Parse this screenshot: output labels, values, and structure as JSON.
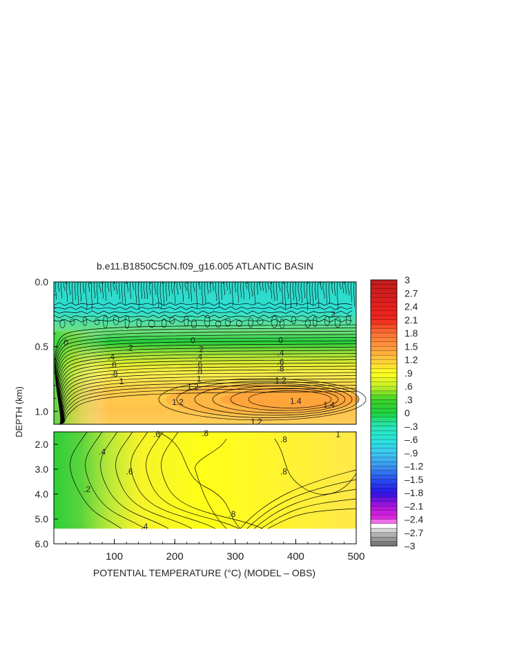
{
  "chart_data": {
    "type": "heatmap",
    "title": "b.e11.B1850C5CN.f09_g16.005 ATLANTIC BASIN",
    "xlabel": "POTENTIAL TEMPERATURE (°C) (MODEL – OBS)",
    "ylabel": "DEPTH (km)",
    "xlim": [
      0,
      500
    ],
    "x_ticks": [
      "100",
      "200",
      "300",
      "400",
      "500"
    ],
    "y_ticks_upper": [
      "0.0",
      "0.5",
      "1.0"
    ],
    "y_ticks_lower": [
      "2.0",
      "3.0",
      "4.0",
      "5.0",
      "6.0"
    ],
    "ylim_upper": [
      0,
      1.1
    ],
    "ylim_lower": [
      1.5,
      6.0
    ],
    "colorbar": {
      "labels": [
        "3",
        "2.7",
        "2.4",
        "2.1",
        "1.8",
        "1.5",
        "1.2",
        ".9",
        ".6",
        ".3",
        "0",
        "–.3",
        "–.6",
        "–.9",
        "–1.2",
        "–1.5",
        "–1.8",
        "–2.1",
        "–2.4",
        "–2.7",
        "–3"
      ],
      "max": 3,
      "min": -3
    },
    "contour_labels": [
      {
        "text": "0",
        "x": 20,
        "y": 0.47,
        "panel": "upper"
      },
      {
        "text": ".2",
        "x": 125,
        "y": 0.51,
        "panel": "upper"
      },
      {
        "text": ".4",
        "x": 95,
        "y": 0.58,
        "panel": "upper"
      },
      {
        "text": ".6",
        "x": 98,
        "y": 0.64,
        "panel": "upper"
      },
      {
        "text": ".8",
        "x": 100,
        "y": 0.71,
        "panel": "upper"
      },
      {
        "text": "1",
        "x": 112,
        "y": 0.77,
        "panel": "upper"
      },
      {
        "text": "1.2",
        "x": 230,
        "y": 0.81,
        "panel": "upper"
      },
      {
        "text": "1.2",
        "x": 205,
        "y": 0.93,
        "panel": "upper"
      },
      {
        "text": "1.2",
        "x": 375,
        "y": 0.76,
        "panel": "upper"
      },
      {
        "text": "1.2",
        "x": 335,
        "y": 1.08,
        "panel": "upper"
      },
      {
        "text": "1.4",
        "x": 400,
        "y": 0.92,
        "panel": "upper"
      },
      {
        "text": "1.4",
        "x": 455,
        "y": 0.95,
        "panel": "upper"
      },
      {
        "text": "0",
        "x": 230,
        "y": 0.45,
        "panel": "upper"
      },
      {
        "text": ".2",
        "x": 242,
        "y": 0.52,
        "panel": "upper"
      },
      {
        "text": ".4",
        "x": 240,
        "y": 0.58,
        "panel": "upper"
      },
      {
        "text": ".6",
        "x": 240,
        "y": 0.64,
        "panel": "upper"
      },
      {
        "text": ".8",
        "x": 240,
        "y": 0.69,
        "panel": "upper"
      },
      {
        "text": "1",
        "x": 240,
        "y": 0.75,
        "panel": "upper"
      },
      {
        "text": "0",
        "x": 375,
        "y": 0.45,
        "panel": "upper"
      },
      {
        "text": ".4",
        "x": 375,
        "y": 0.55,
        "panel": "upper"
      },
      {
        "text": ".6",
        "x": 375,
        "y": 0.62,
        "panel": "upper"
      },
      {
        "text": ".8",
        "x": 375,
        "y": 0.67,
        "panel": "upper"
      },
      {
        "text": ".2",
        "x": 460,
        "y": 0.25,
        "panel": "upper"
      },
      {
        "text": ".6",
        "x": 170,
        "y": 1.6,
        "panel": "lower"
      },
      {
        "text": ".8",
        "x": 250,
        "y": 1.55,
        "panel": "lower"
      },
      {
        "text": ".8",
        "x": 380,
        "y": 1.8,
        "panel": "lower"
      },
      {
        "text": ".8",
        "x": 380,
        "y": 3.1,
        "panel": "lower"
      },
      {
        "text": ".8",
        "x": 295,
        "y": 4.8,
        "panel": "lower"
      },
      {
        "text": ".4",
        "x": 80,
        "y": 2.3,
        "panel": "lower"
      },
      {
        "text": ".2",
        "x": 55,
        "y": 3.8,
        "panel": "lower"
      },
      {
        "text": ".6",
        "x": 125,
        "y": 3.1,
        "panel": "lower"
      },
      {
        "text": ".4",
        "x": 150,
        "y": 5.3,
        "panel": "lower"
      },
      {
        "text": "1",
        "x": 470,
        "y": 1.6,
        "panel": "lower"
      }
    ]
  }
}
